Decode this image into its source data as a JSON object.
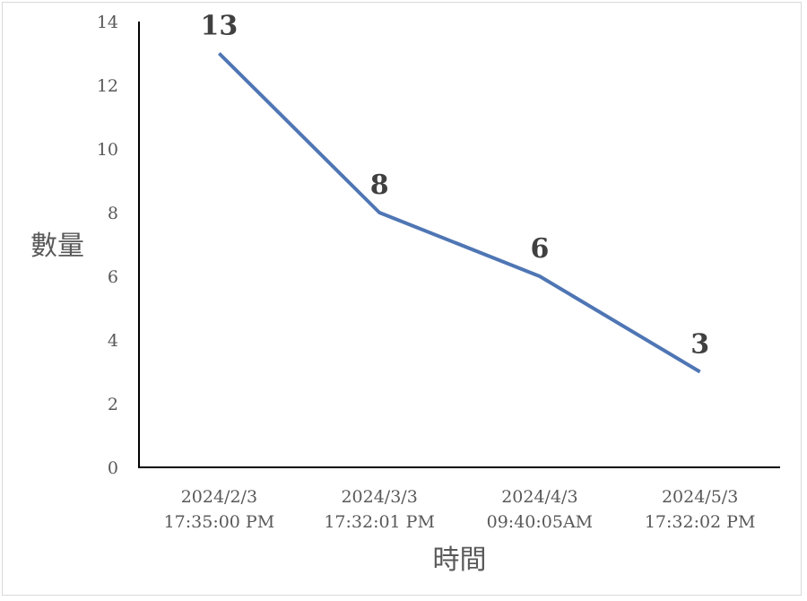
{
  "chart_data": {
    "type": "line",
    "title": "",
    "xlabel": "時間",
    "ylabel": "數量",
    "ylim": [
      0,
      14
    ],
    "yticks": [
      0,
      2,
      4,
      6,
      8,
      10,
      12,
      14
    ],
    "categories": [
      [
        "2024/2/3",
        "17:35:00 PM"
      ],
      [
        "2024/3/3",
        "17:32:01 PM"
      ],
      [
        "2024/4/3",
        "09:40:05AM"
      ],
      [
        "2024/5/3",
        "17:32:02 PM"
      ]
    ],
    "series": [
      {
        "values": [
          13,
          8,
          6,
          3
        ],
        "color": "#4f76b4"
      }
    ],
    "data_labels": [
      "13",
      "8",
      "6",
      "3"
    ],
    "grid": false,
    "legend": "none"
  }
}
